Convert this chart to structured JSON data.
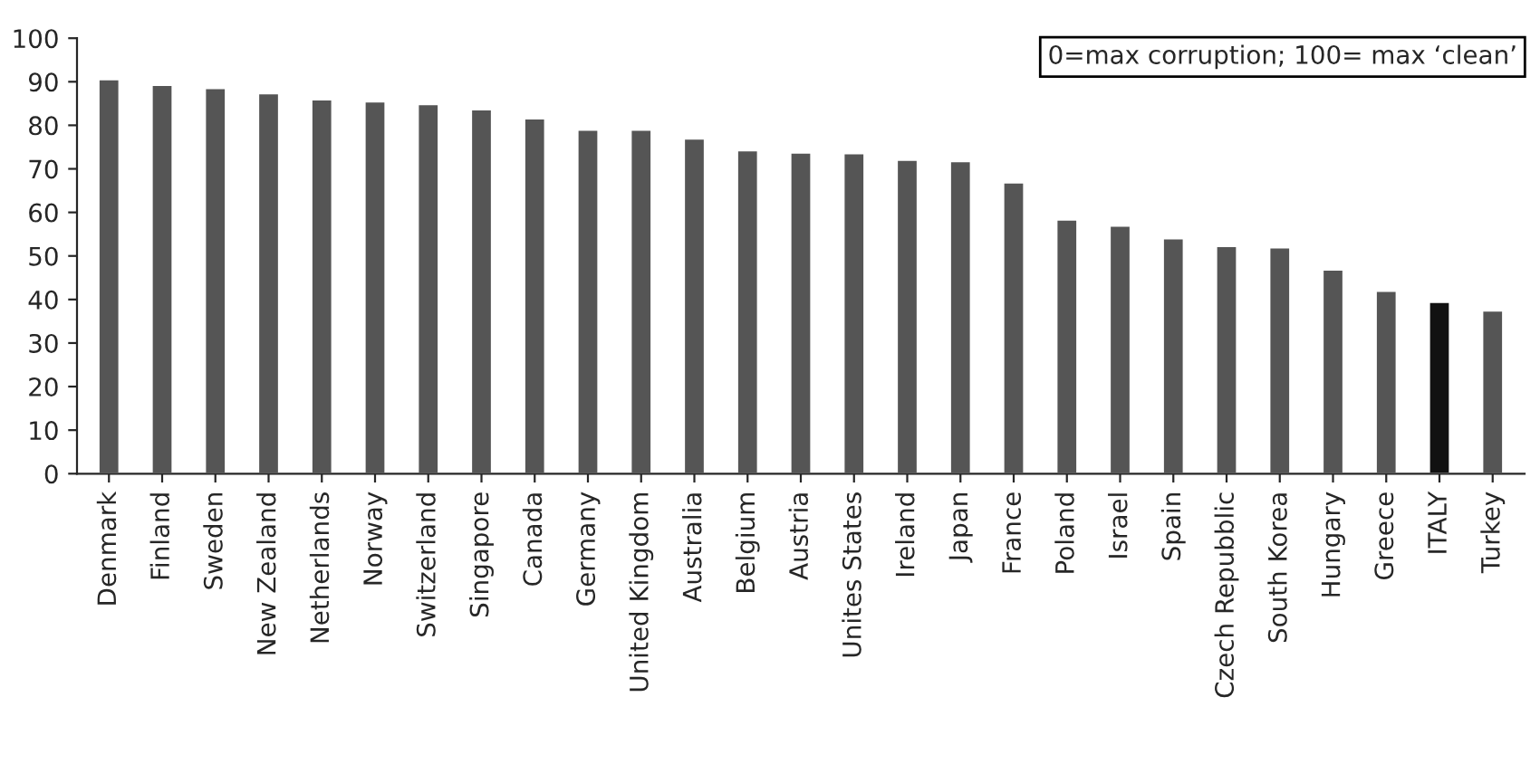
{
  "chart_data": {
    "type": "bar",
    "categories": [
      "Denmark",
      "Finland",
      "Sweden",
      "New Zealand",
      "Netherlands",
      "Norway",
      "Switzerland",
      "Singapore",
      "Canada",
      "Germany",
      "United Kingdom",
      "Australia",
      "Belgium",
      "Austria",
      "Unites States",
      "Ireland",
      "Japan",
      "France",
      "Poland",
      "Israel",
      "Spain",
      "Czech Repubblic",
      "South Korea",
      "Hungary",
      "Greece",
      "ITALY",
      "Turkey"
    ],
    "values": [
      90.6,
      89.3,
      88.6,
      87.4,
      86,
      85.5,
      84.9,
      83.7,
      81.6,
      79,
      79,
      77,
      74.3,
      73.8,
      73.6,
      72.1,
      71.8,
      66.9,
      58.4,
      57,
      54.1,
      52.3,
      52,
      46.9,
      42,
      39.5,
      37.5
    ],
    "colors": [
      "#555555",
      "#555555",
      "#555555",
      "#555555",
      "#555555",
      "#555555",
      "#555555",
      "#555555",
      "#555555",
      "#555555",
      "#555555",
      "#555555",
      "#555555",
      "#555555",
      "#555555",
      "#555555",
      "#555555",
      "#555555",
      "#555555",
      "#555555",
      "#555555",
      "#555555",
      "#555555",
      "#555555",
      "#555555",
      "#111111",
      "#555555"
    ],
    "ylim": [
      0,
      100
    ],
    "yticks": [
      0,
      10,
      20,
      30,
      40,
      50,
      60,
      70,
      80,
      90,
      100
    ],
    "annotations": [
      "0=max corruption; 100= max ‘clean’"
    ],
    "grid": false
  }
}
